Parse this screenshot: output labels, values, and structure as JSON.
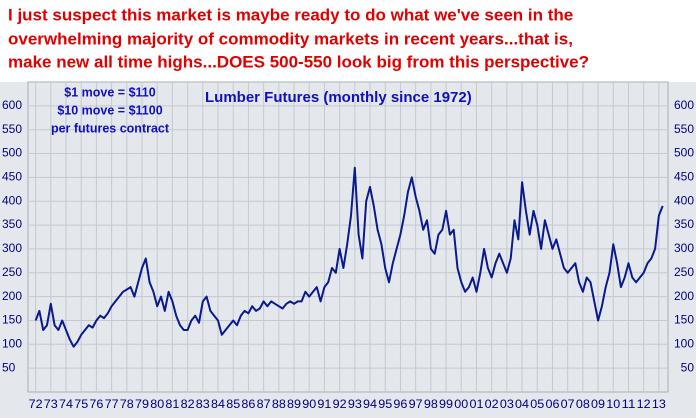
{
  "chart_data": {
    "type": "line",
    "headline": [
      "I just suspect this market is maybe ready to do what we've seen in the",
      "overwhelming majority of commodity markets in recent years...that is,",
      "make new all time highs...DOES 500-550 look big from this perspective?"
    ],
    "title": "Lumber Futures (monthly since 1972)",
    "notes": [
      "$1 move = $110",
      "$10 move = $1100",
      "per futures contract"
    ],
    "color": "#0a1a8c",
    "grid": true,
    "ylim": [
      0,
      650
    ],
    "yticks": [
      50,
      100,
      150,
      200,
      250,
      300,
      350,
      400,
      450,
      500,
      550,
      600
    ],
    "xlim": [
      1971.5,
      2013.6
    ],
    "xticks": [
      {
        "value": 1972,
        "label": "72"
      },
      {
        "value": 1973,
        "label": "73"
      },
      {
        "value": 1974,
        "label": "74"
      },
      {
        "value": 1975,
        "label": "75"
      },
      {
        "value": 1976,
        "label": "76"
      },
      {
        "value": 1977,
        "label": "77"
      },
      {
        "value": 1978,
        "label": "78"
      },
      {
        "value": 1979,
        "label": "79"
      },
      {
        "value": 1980,
        "label": "80"
      },
      {
        "value": 1981,
        "label": "81"
      },
      {
        "value": 1982,
        "label": "82"
      },
      {
        "value": 1983,
        "label": "83"
      },
      {
        "value": 1984,
        "label": "84"
      },
      {
        "value": 1985,
        "label": "85"
      },
      {
        "value": 1986,
        "label": "86"
      },
      {
        "value": 1987,
        "label": "87"
      },
      {
        "value": 1988,
        "label": "88"
      },
      {
        "value": 1989,
        "label": "89"
      },
      {
        "value": 1990,
        "label": "90"
      },
      {
        "value": 1991,
        "label": "91"
      },
      {
        "value": 1992,
        "label": "92"
      },
      {
        "value": 1993,
        "label": "93"
      },
      {
        "value": 1994,
        "label": "94"
      },
      {
        "value": 1995,
        "label": "95"
      },
      {
        "value": 1996,
        "label": "96"
      },
      {
        "value": 1997,
        "label": "97"
      },
      {
        "value": 1998,
        "label": "98"
      },
      {
        "value": 1999,
        "label": "99"
      },
      {
        "value": 2000,
        "label": "00"
      },
      {
        "value": 2001,
        "label": "01"
      },
      {
        "value": 2002,
        "label": "02"
      },
      {
        "value": 2003,
        "label": "03"
      },
      {
        "value": 2004,
        "label": "04"
      },
      {
        "value": 2005,
        "label": "05"
      },
      {
        "value": 2006,
        "label": "06"
      },
      {
        "value": 2007,
        "label": "07"
      },
      {
        "value": 2008,
        "label": "08"
      },
      {
        "value": 2009,
        "label": "09"
      },
      {
        "value": 2010,
        "label": "10"
      },
      {
        "value": 2011,
        "label": "11"
      },
      {
        "value": 2012,
        "label": "12"
      },
      {
        "value": 2013,
        "label": "13"
      }
    ],
    "x": [
      1972,
      1972.25,
      1972.5,
      1972.75,
      1973,
      1973.25,
      1973.5,
      1973.75,
      1974,
      1974.25,
      1974.5,
      1974.75,
      1975,
      1975.25,
      1975.5,
      1975.75,
      1976,
      1976.25,
      1976.5,
      1976.75,
      1977,
      1977.25,
      1977.5,
      1977.75,
      1978,
      1978.25,
      1978.5,
      1978.75,
      1979,
      1979.25,
      1979.5,
      1979.75,
      1980,
      1980.25,
      1980.5,
      1980.75,
      1981,
      1981.25,
      1981.5,
      1981.75,
      1982,
      1982.25,
      1982.5,
      1982.75,
      1983,
      1983.25,
      1983.5,
      1983.75,
      1984,
      1984.25,
      1984.5,
      1984.75,
      1985,
      1985.25,
      1985.5,
      1985.75,
      1986,
      1986.25,
      1986.5,
      1986.75,
      1987,
      1987.25,
      1987.5,
      1987.75,
      1988,
      1988.25,
      1988.5,
      1988.75,
      1989,
      1989.25,
      1989.5,
      1989.75,
      1990,
      1990.25,
      1990.5,
      1990.75,
      1991,
      1991.25,
      1991.5,
      1991.75,
      1992,
      1992.25,
      1992.5,
      1992.75,
      1993,
      1993.25,
      1993.5,
      1993.75,
      1994,
      1994.25,
      1994.5,
      1994.75,
      1995,
      1995.25,
      1995.5,
      1995.75,
      1996,
      1996.25,
      1996.5,
      1996.75,
      1997,
      1997.25,
      1997.5,
      1997.75,
      1998,
      1998.25,
      1998.5,
      1998.75,
      1999,
      1999.25,
      1999.5,
      1999.75,
      2000,
      2000.25,
      2000.5,
      2000.75,
      2001,
      2001.25,
      2001.5,
      2001.75,
      2002,
      2002.25,
      2002.5,
      2002.75,
      2003,
      2003.25,
      2003.5,
      2003.75,
      2004,
      2004.25,
      2004.5,
      2004.75,
      2005,
      2005.25,
      2005.5,
      2005.75,
      2006,
      2006.25,
      2006.5,
      2006.75,
      2007,
      2007.25,
      2007.5,
      2007.75,
      2008,
      2008.25,
      2008.5,
      2008.75,
      2009,
      2009.25,
      2009.5,
      2009.75,
      2010,
      2010.25,
      2010.5,
      2010.75,
      2011,
      2011.25,
      2011.5,
      2011.75,
      2012,
      2012.25,
      2012.5,
      2012.75,
      2013,
      2013.25
    ],
    "values": [
      150,
      170,
      130,
      140,
      185,
      140,
      130,
      150,
      130,
      110,
      95,
      105,
      120,
      130,
      140,
      135,
      150,
      160,
      155,
      165,
      180,
      190,
      200,
      210,
      215,
      220,
      200,
      230,
      260,
      280,
      230,
      210,
      180,
      200,
      170,
      210,
      190,
      160,
      140,
      130,
      130,
      150,
      160,
      145,
      190,
      200,
      170,
      160,
      150,
      120,
      130,
      140,
      150,
      140,
      160,
      170,
      165,
      180,
      170,
      175,
      190,
      180,
      190,
      185,
      180,
      175,
      185,
      190,
      185,
      190,
      190,
      210,
      200,
      210,
      220,
      190,
      220,
      230,
      260,
      250,
      300,
      260,
      310,
      370,
      470,
      330,
      280,
      400,
      430,
      390,
      340,
      310,
      260,
      230,
      270,
      300,
      330,
      370,
      420,
      450,
      410,
      380,
      340,
      360,
      300,
      290,
      330,
      340,
      380,
      330,
      340,
      260,
      230,
      210,
      220,
      240,
      210,
      250,
      300,
      260,
      240,
      270,
      290,
      270,
      250,
      280,
      360,
      320,
      440,
      380,
      330,
      380,
      350,
      300,
      360,
      330,
      300,
      320,
      290,
      260,
      250,
      260,
      270,
      230,
      210,
      240,
      230,
      190,
      150,
      180,
      220,
      250,
      310,
      270,
      220,
      240,
      270,
      240,
      230,
      240,
      250,
      270,
      280,
      300,
      370,
      390
    ]
  }
}
